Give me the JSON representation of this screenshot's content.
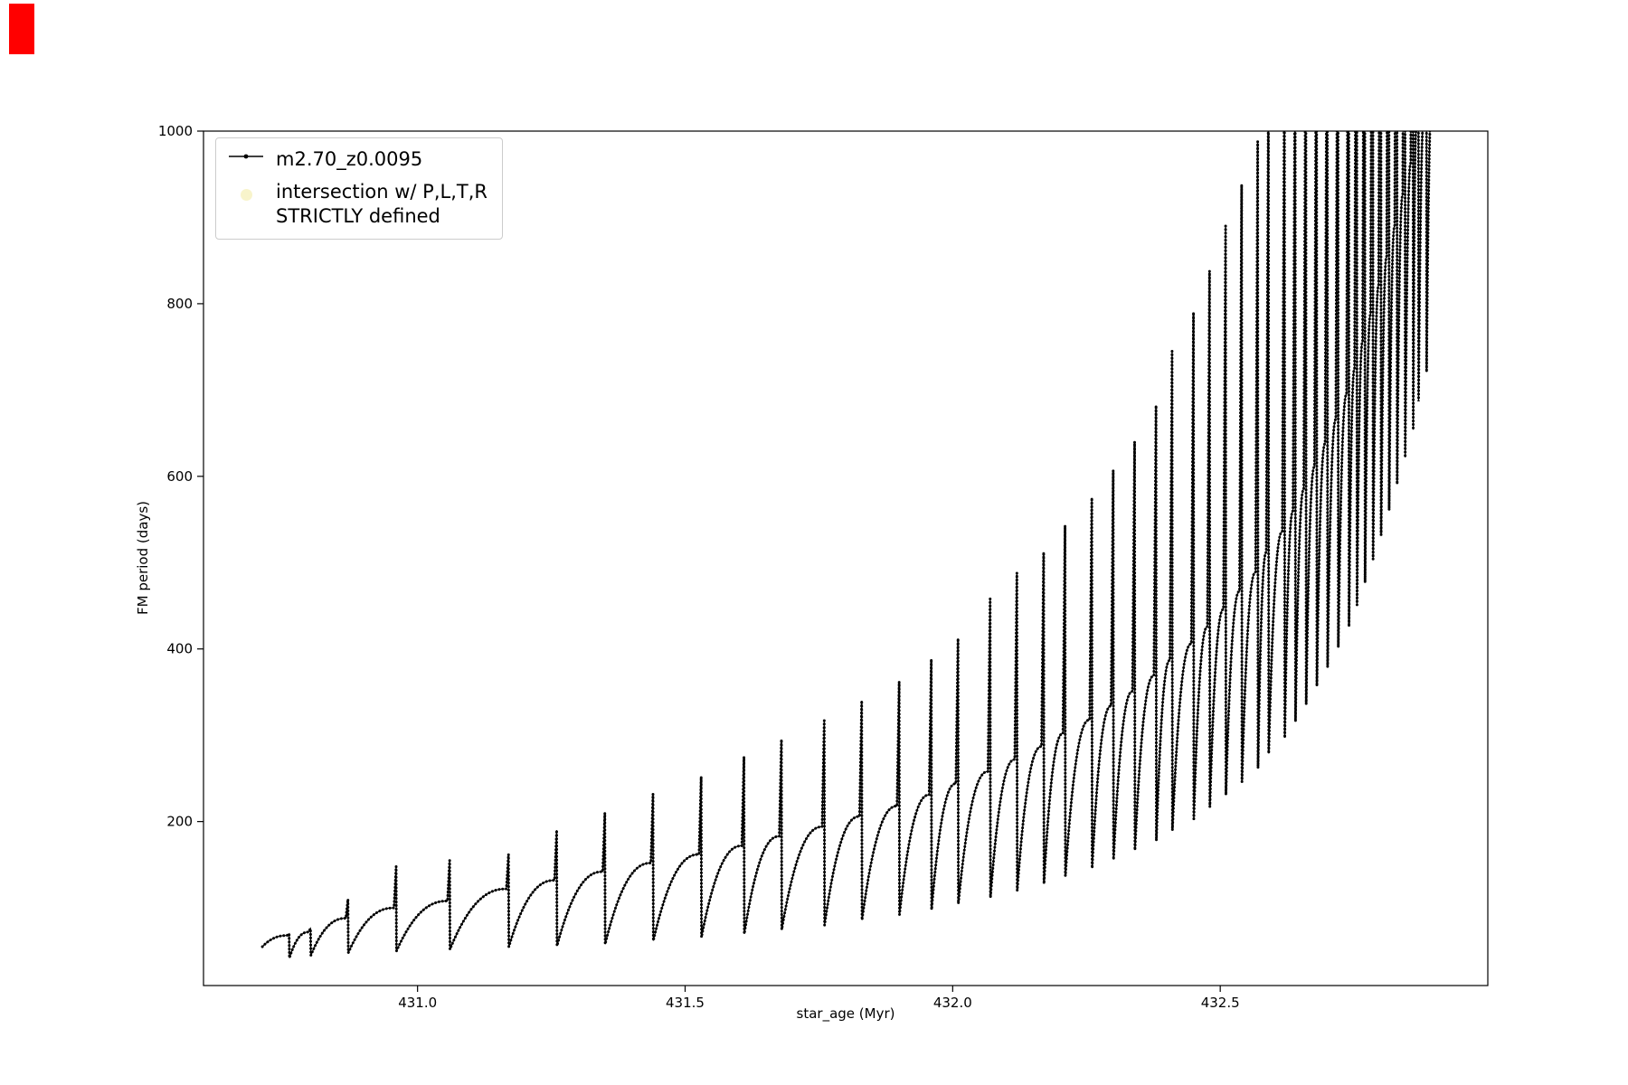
{
  "figure": {
    "background": "#ffffff",
    "red_marker_color": "#ff0000"
  },
  "legend": {
    "position": "upper left",
    "entries": [
      {
        "label": "m2.70_z0.0095",
        "marker": "line-with-dot",
        "color": "#000000"
      },
      {
        "label_line1": "intersection w/ P,L,T,R",
        "label_line2": "STRICTLY defined",
        "marker": "circle",
        "color": "#f0e68c",
        "opacity": 0.45
      }
    ]
  },
  "chart_data": {
    "type": "line",
    "title": "",
    "xlabel": "star_age (Myr)",
    "ylabel": "FM period (days)",
    "xlim": [
      430.6,
      433.0
    ],
    "ylim": [
      10,
      1000
    ],
    "grid": false,
    "legend_position": "upper left",
    "line_color": "#000000",
    "series_name": "m2.70_z0.0095",
    "series_start_x": 430.71,
    "xticks": [
      {
        "v": 431.0,
        "label": "431.0"
      },
      {
        "v": 431.5,
        "label": "431.5"
      },
      {
        "v": 432.0,
        "label": "432.0"
      },
      {
        "v": 432.5,
        "label": "432.5"
      }
    ],
    "yticks": [
      {
        "v": 200,
        "label": "200"
      },
      {
        "v": 400,
        "label": "400"
      },
      {
        "v": 600,
        "label": "600"
      },
      {
        "v": 800,
        "label": "800"
      },
      {
        "v": 1000,
        "label": "1000"
      }
    ],
    "cycles_format": "[x_end_Myr, y_min_days, y_shoulder_days, y_peak_days] per relaxation-oscillation cycle; peaks above 1000 are clipped by the axes",
    "cycles": [
      [
        430.76,
        55,
        68,
        70
      ],
      [
        430.8,
        42,
        72,
        76
      ],
      [
        430.87,
        45,
        88,
        110
      ],
      [
        430.96,
        48,
        100,
        148
      ],
      [
        431.06,
        50,
        108,
        155
      ],
      [
        431.17,
        52,
        122,
        162
      ],
      [
        431.26,
        55,
        132,
        190
      ],
      [
        431.35,
        56,
        142,
        210
      ],
      [
        431.44,
        58,
        152,
        232
      ],
      [
        431.53,
        62,
        162,
        252
      ],
      [
        431.61,
        66,
        172,
        275
      ],
      [
        431.68,
        70,
        183,
        295
      ],
      [
        431.76,
        75,
        194,
        317
      ],
      [
        431.83,
        80,
        206,
        340
      ],
      [
        431.9,
        86,
        218,
        362
      ],
      [
        431.96,
        92,
        231,
        388
      ],
      [
        432.01,
        98,
        244,
        412
      ],
      [
        432.07,
        105,
        258,
        458
      ],
      [
        432.12,
        112,
        272,
        488
      ],
      [
        432.17,
        120,
        287,
        512
      ],
      [
        432.21,
        128,
        302,
        543
      ],
      [
        432.26,
        137,
        318,
        575
      ],
      [
        432.3,
        146,
        334,
        607
      ],
      [
        432.34,
        156,
        351,
        640
      ],
      [
        432.38,
        167,
        369,
        682
      ],
      [
        432.41,
        178,
        387,
        745
      ],
      [
        432.45,
        190,
        406,
        790
      ],
      [
        432.48,
        203,
        426,
        838
      ],
      [
        432.51,
        217,
        446,
        890
      ],
      [
        432.54,
        231,
        467,
        938
      ],
      [
        432.57,
        246,
        489,
        988
      ],
      [
        432.59,
        262,
        512,
        1040
      ],
      [
        432.62,
        279,
        536,
        1090
      ],
      [
        432.64,
        297,
        560,
        1140
      ],
      [
        432.66,
        316,
        585,
        1190
      ],
      [
        432.68,
        336,
        611,
        1240
      ],
      [
        432.7,
        357,
        638,
        1290
      ],
      [
        432.72,
        379,
        666,
        1340
      ],
      [
        432.74,
        402,
        695,
        1390
      ],
      [
        432.755,
        426,
        725,
        1440
      ],
      [
        432.77,
        451,
        756,
        1490
      ],
      [
        432.785,
        477,
        788,
        1540
      ],
      [
        432.8,
        504,
        821,
        1590
      ],
      [
        432.815,
        532,
        855,
        1640
      ],
      [
        432.83,
        561,
        890,
        1690
      ],
      [
        432.845,
        591,
        926,
        1740
      ],
      [
        432.86,
        622,
        963,
        1790
      ],
      [
        432.87,
        654,
        1000,
        1840
      ],
      [
        432.885,
        687,
        1020,
        1890
      ],
      [
        432.9,
        721,
        1040,
        1940
      ]
    ]
  }
}
